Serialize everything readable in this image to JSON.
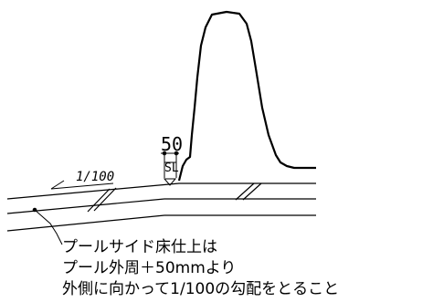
{
  "dimension": {
    "value": "50",
    "level_label": "SL"
  },
  "slope": {
    "label": "1/100"
  },
  "note": {
    "lines": [
      "プールサイド床仕上は",
      "プール外周＋50mmより",
      "外側に向かって1/100の勾配をとること"
    ]
  },
  "colors": {
    "line": "#000000",
    "background": "#ffffff"
  }
}
